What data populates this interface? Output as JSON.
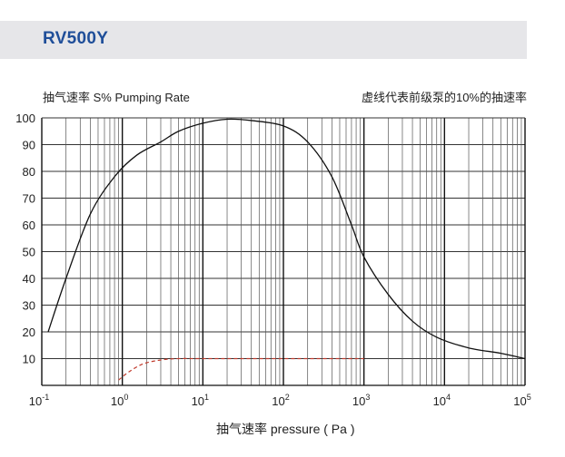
{
  "header": {
    "title": "RV500Y"
  },
  "chart_data": {
    "type": "line",
    "title": "RV500Y",
    "ylabel": "抽气速率 S%  Pumping Rate",
    "xlabel": "抽气速率 pressure ( Pa )",
    "annotation": "虚线代表前级泵的10%的抽速率",
    "x_scale": "log",
    "xlim": [
      0.1,
      100000
    ],
    "ylim": [
      0,
      100
    ],
    "x_ticks": [
      {
        "base": "10",
        "exp": "-1"
      },
      {
        "base": "10",
        "exp": "0"
      },
      {
        "base": "10",
        "exp": "1"
      },
      {
        "base": "10",
        "exp": "2"
      },
      {
        "base": "10",
        "exp": "3"
      },
      {
        "base": "10",
        "exp": "4"
      },
      {
        "base": "10",
        "exp": "5"
      }
    ],
    "y_ticks": [
      "10",
      "20",
      "30",
      "40",
      "50",
      "60",
      "70",
      "80",
      "90",
      "100"
    ],
    "grid": true,
    "colors": {
      "main": "#111111",
      "dashed": "#c0392b",
      "grid": "#333333"
    },
    "series": [
      {
        "style": "solid",
        "points": [
          [
            0.12,
            20
          ],
          [
            0.2,
            40
          ],
          [
            0.4,
            64
          ],
          [
            0.8,
            78
          ],
          [
            1.5,
            86
          ],
          [
            3,
            91
          ],
          [
            5,
            95
          ],
          [
            10,
            98
          ],
          [
            20,
            99.5
          ],
          [
            40,
            99
          ],
          [
            100,
            97
          ],
          [
            200,
            91
          ],
          [
            400,
            78
          ],
          [
            700,
            60
          ],
          [
            1000,
            48
          ],
          [
            2000,
            34
          ],
          [
            4000,
            24
          ],
          [
            8000,
            18
          ],
          [
            20000,
            14
          ],
          [
            50000,
            12
          ],
          [
            100000,
            10
          ]
        ]
      },
      {
        "style": "dashed",
        "points": [
          [
            0.9,
            2
          ],
          [
            1.2,
            5
          ],
          [
            1.8,
            8
          ],
          [
            3,
            9.5
          ],
          [
            5,
            10
          ],
          [
            10,
            10
          ],
          [
            100,
            10
          ],
          [
            1000,
            10
          ]
        ]
      }
    ]
  }
}
